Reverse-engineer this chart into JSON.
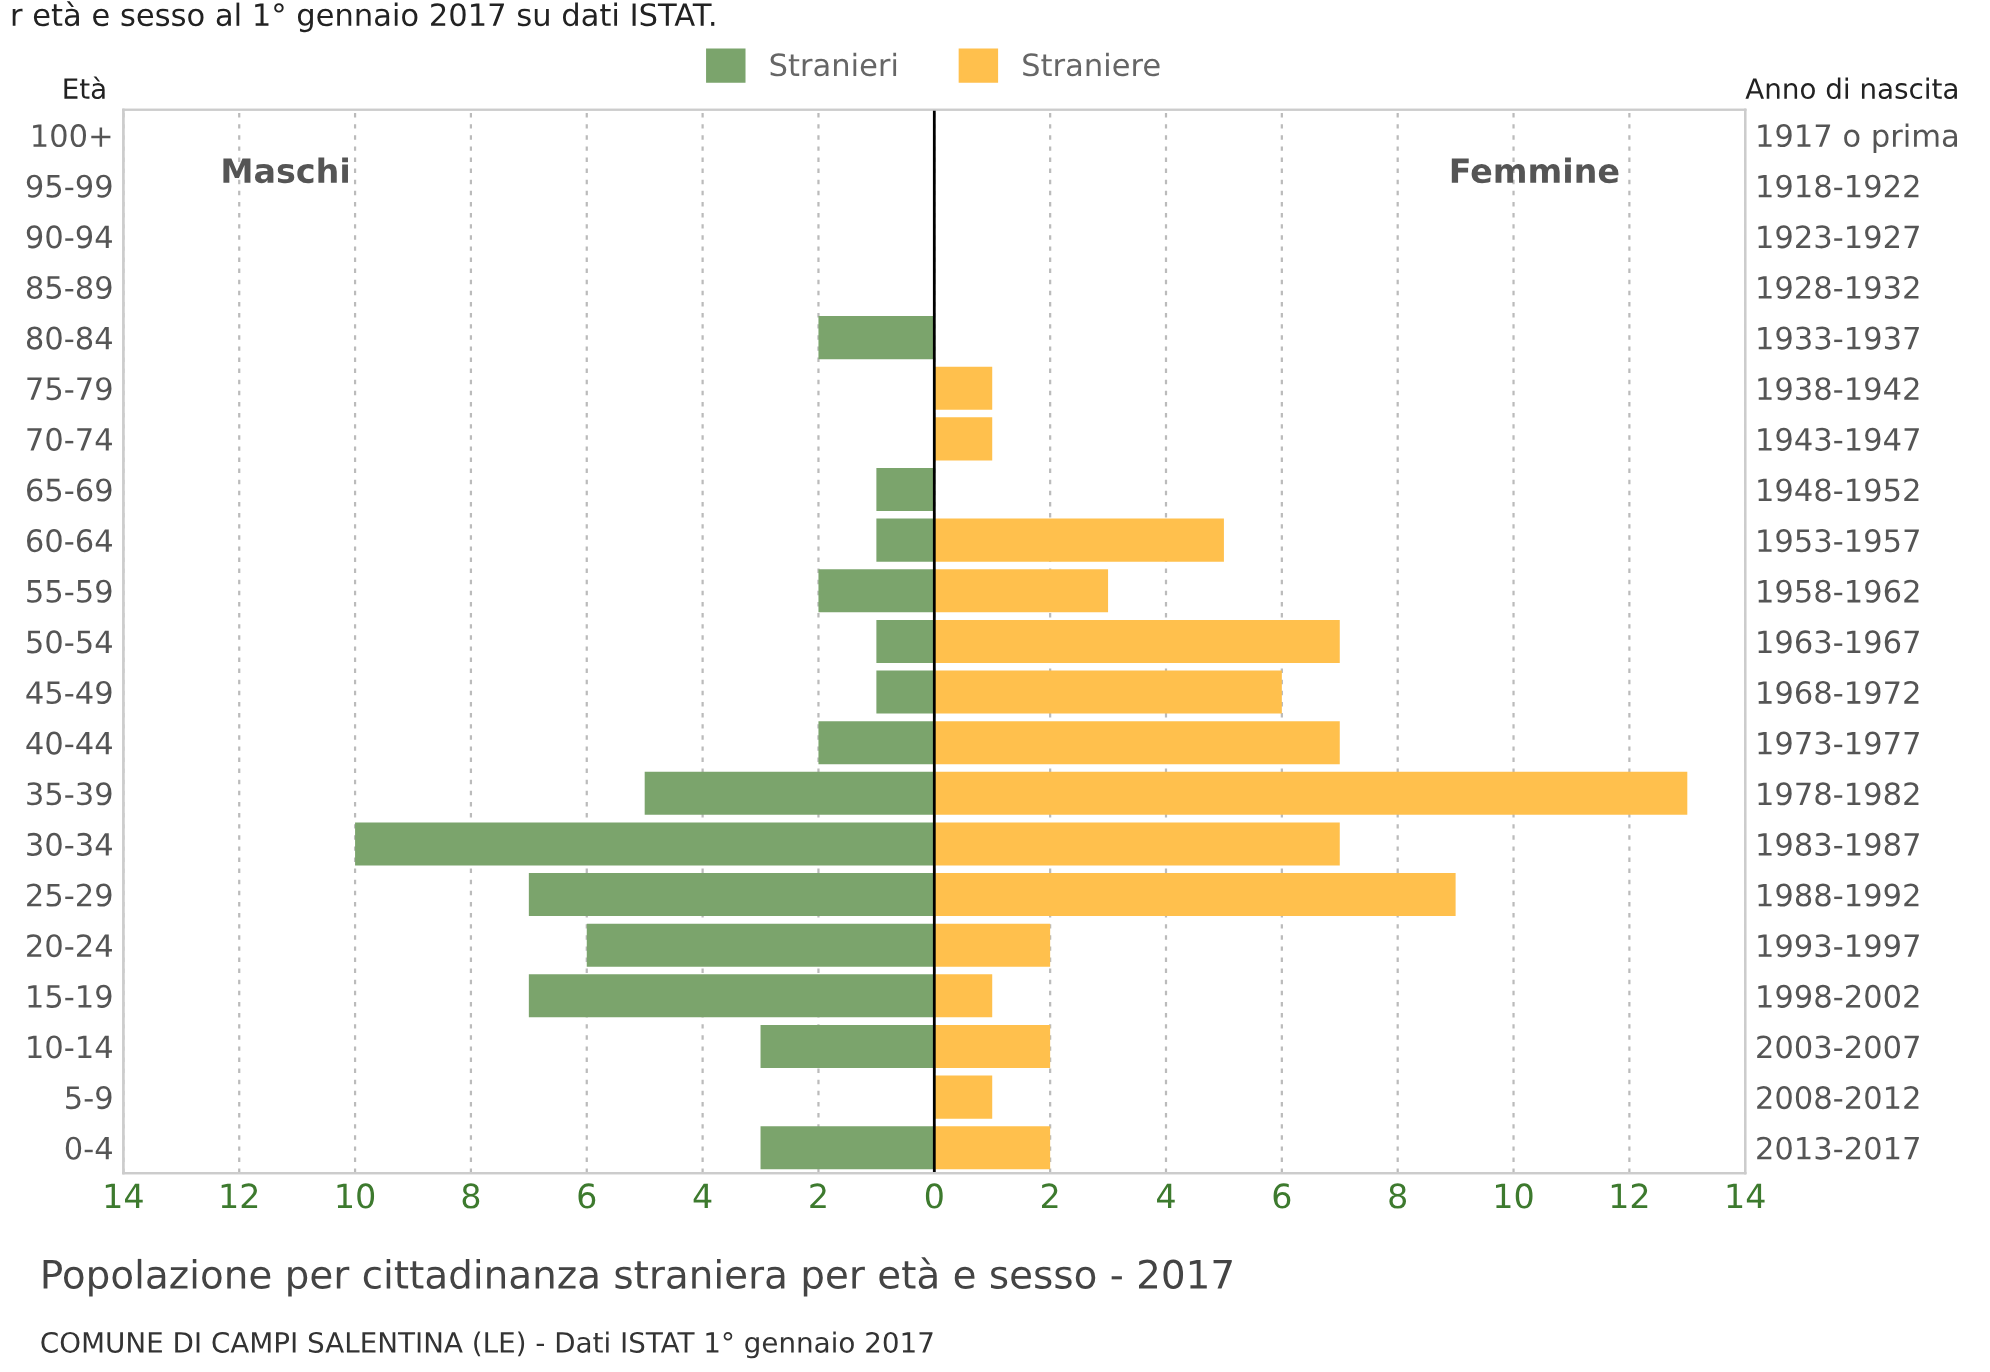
{
  "chart_data": {
    "type": "bar",
    "orientation": "horizontal",
    "title": "Popolazione per cittadinanza straniera per età e sesso - 2017",
    "subtitle": "r età e sesso al 1° gennaio 2017 su dati ISTAT.",
    "ylabel": "Età",
    "y2label": "Anno di nascita",
    "categories": [
      "100+",
      "95-99",
      "90-94",
      "85-89",
      "80-84",
      "75-79",
      "70-74",
      "65-69",
      "60-64",
      "55-59",
      "50-54",
      "45-49",
      "40-44",
      "35-39",
      "30-34",
      "25-29",
      "20-24",
      "15-19",
      "10-14",
      "5-9",
      "0-4"
    ],
    "y2_categories": [
      "1917 o prima",
      "1918-1922",
      "1923-1927",
      "1928-1932",
      "1933-1937",
      "1938-1942",
      "1943-1947",
      "1948-1952",
      "1953-1957",
      "1958-1962",
      "1963-1967",
      "1968-1972",
      "1973-1977",
      "1978-1982",
      "1983-1987",
      "1988-1992",
      "1993-1997",
      "1998-2002",
      "2003-2007",
      "2008-2012",
      "2013-2017"
    ],
    "series": [
      {
        "name": "Stranieri",
        "color": "#7ba46c",
        "values": [
          0,
          0,
          0,
          0,
          -2,
          0,
          0,
          -1,
          -1,
          -2,
          -1,
          -1,
          -2,
          -5,
          -10,
          -7,
          -6,
          -7,
          -3,
          0,
          -3
        ]
      },
      {
        "name": "Straniere",
        "color": "#ffc04d",
        "values": [
          0,
          0,
          0,
          0,
          0,
          1,
          1,
          0,
          5,
          3,
          7,
          6,
          7,
          13,
          7,
          9,
          2,
          1,
          2,
          1,
          2
        ]
      }
    ],
    "xlim": [
      -14,
      14
    ],
    "xticks": [
      {
        "value": -14,
        "label": "14"
      },
      {
        "value": -12,
        "label": "12"
      },
      {
        "value": -10,
        "label": "10"
      },
      {
        "value": -8,
        "label": "8"
      },
      {
        "value": -6,
        "label": "6"
      },
      {
        "value": -4,
        "label": "4"
      },
      {
        "value": -2,
        "label": "2"
      },
      0,
      2,
      4,
      6,
      8,
      10,
      12,
      14
    ],
    "grid": "x",
    "legend": "top",
    "stacked": true,
    "annotations": [
      "Maschi",
      "Femmine",
      "COMUNE DI CAMPI SALENTINA (LE) - Dati ISTAT 1° gennaio 2017"
    ]
  }
}
